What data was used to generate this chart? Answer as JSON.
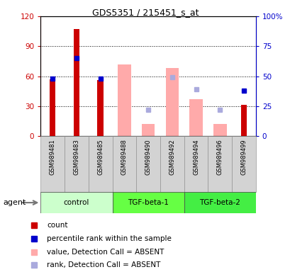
{
  "title": "GDS5351 / 215451_s_at",
  "samples": [
    "GSM989481",
    "GSM989483",
    "GSM989485",
    "GSM989488",
    "GSM989490",
    "GSM989492",
    "GSM989494",
    "GSM989496",
    "GSM989499"
  ],
  "groups": [
    {
      "name": "control",
      "indices": [
        0,
        1,
        2
      ],
      "color": "#ccffcc"
    },
    {
      "name": "TGF-beta-1",
      "indices": [
        3,
        4,
        5
      ],
      "color": "#66ff44"
    },
    {
      "name": "TGF-beta-2",
      "indices": [
        6,
        7,
        8
      ],
      "color": "#44ee44"
    }
  ],
  "count_values": [
    57,
    107,
    56,
    null,
    null,
    null,
    null,
    null,
    31
  ],
  "percentile_rank_values": [
    48,
    65,
    48,
    null,
    null,
    null,
    null,
    null,
    38
  ],
  "absent_value": [
    null,
    null,
    null,
    72,
    12,
    68,
    37,
    12,
    null
  ],
  "absent_rank": [
    null,
    null,
    null,
    null,
    22,
    49,
    39,
    22,
    null
  ],
  "count_color": "#cc0000",
  "percentile_color": "#0000cc",
  "absent_value_color": "#ffaaaa",
  "absent_rank_color": "#aaaadd",
  "ylim_left": [
    0,
    120
  ],
  "ylim_right": [
    0,
    100
  ],
  "yticks_left": [
    0,
    30,
    60,
    90,
    120
  ],
  "yticks_right": [
    0,
    25,
    50,
    75,
    100
  ],
  "ytick_labels_left": [
    "0",
    "30",
    "60",
    "90",
    "120"
  ],
  "ytick_labels_right": [
    "0",
    "25",
    "50",
    "75",
    "100%"
  ],
  "agent_label": "agent",
  "legend_items": [
    {
      "label": "count",
      "color": "#cc0000"
    },
    {
      "label": "percentile rank within the sample",
      "color": "#0000cc"
    },
    {
      "label": "value, Detection Call = ABSENT",
      "color": "#ffaaaa"
    },
    {
      "label": "rank, Detection Call = ABSENT",
      "color": "#aaaadd"
    }
  ]
}
